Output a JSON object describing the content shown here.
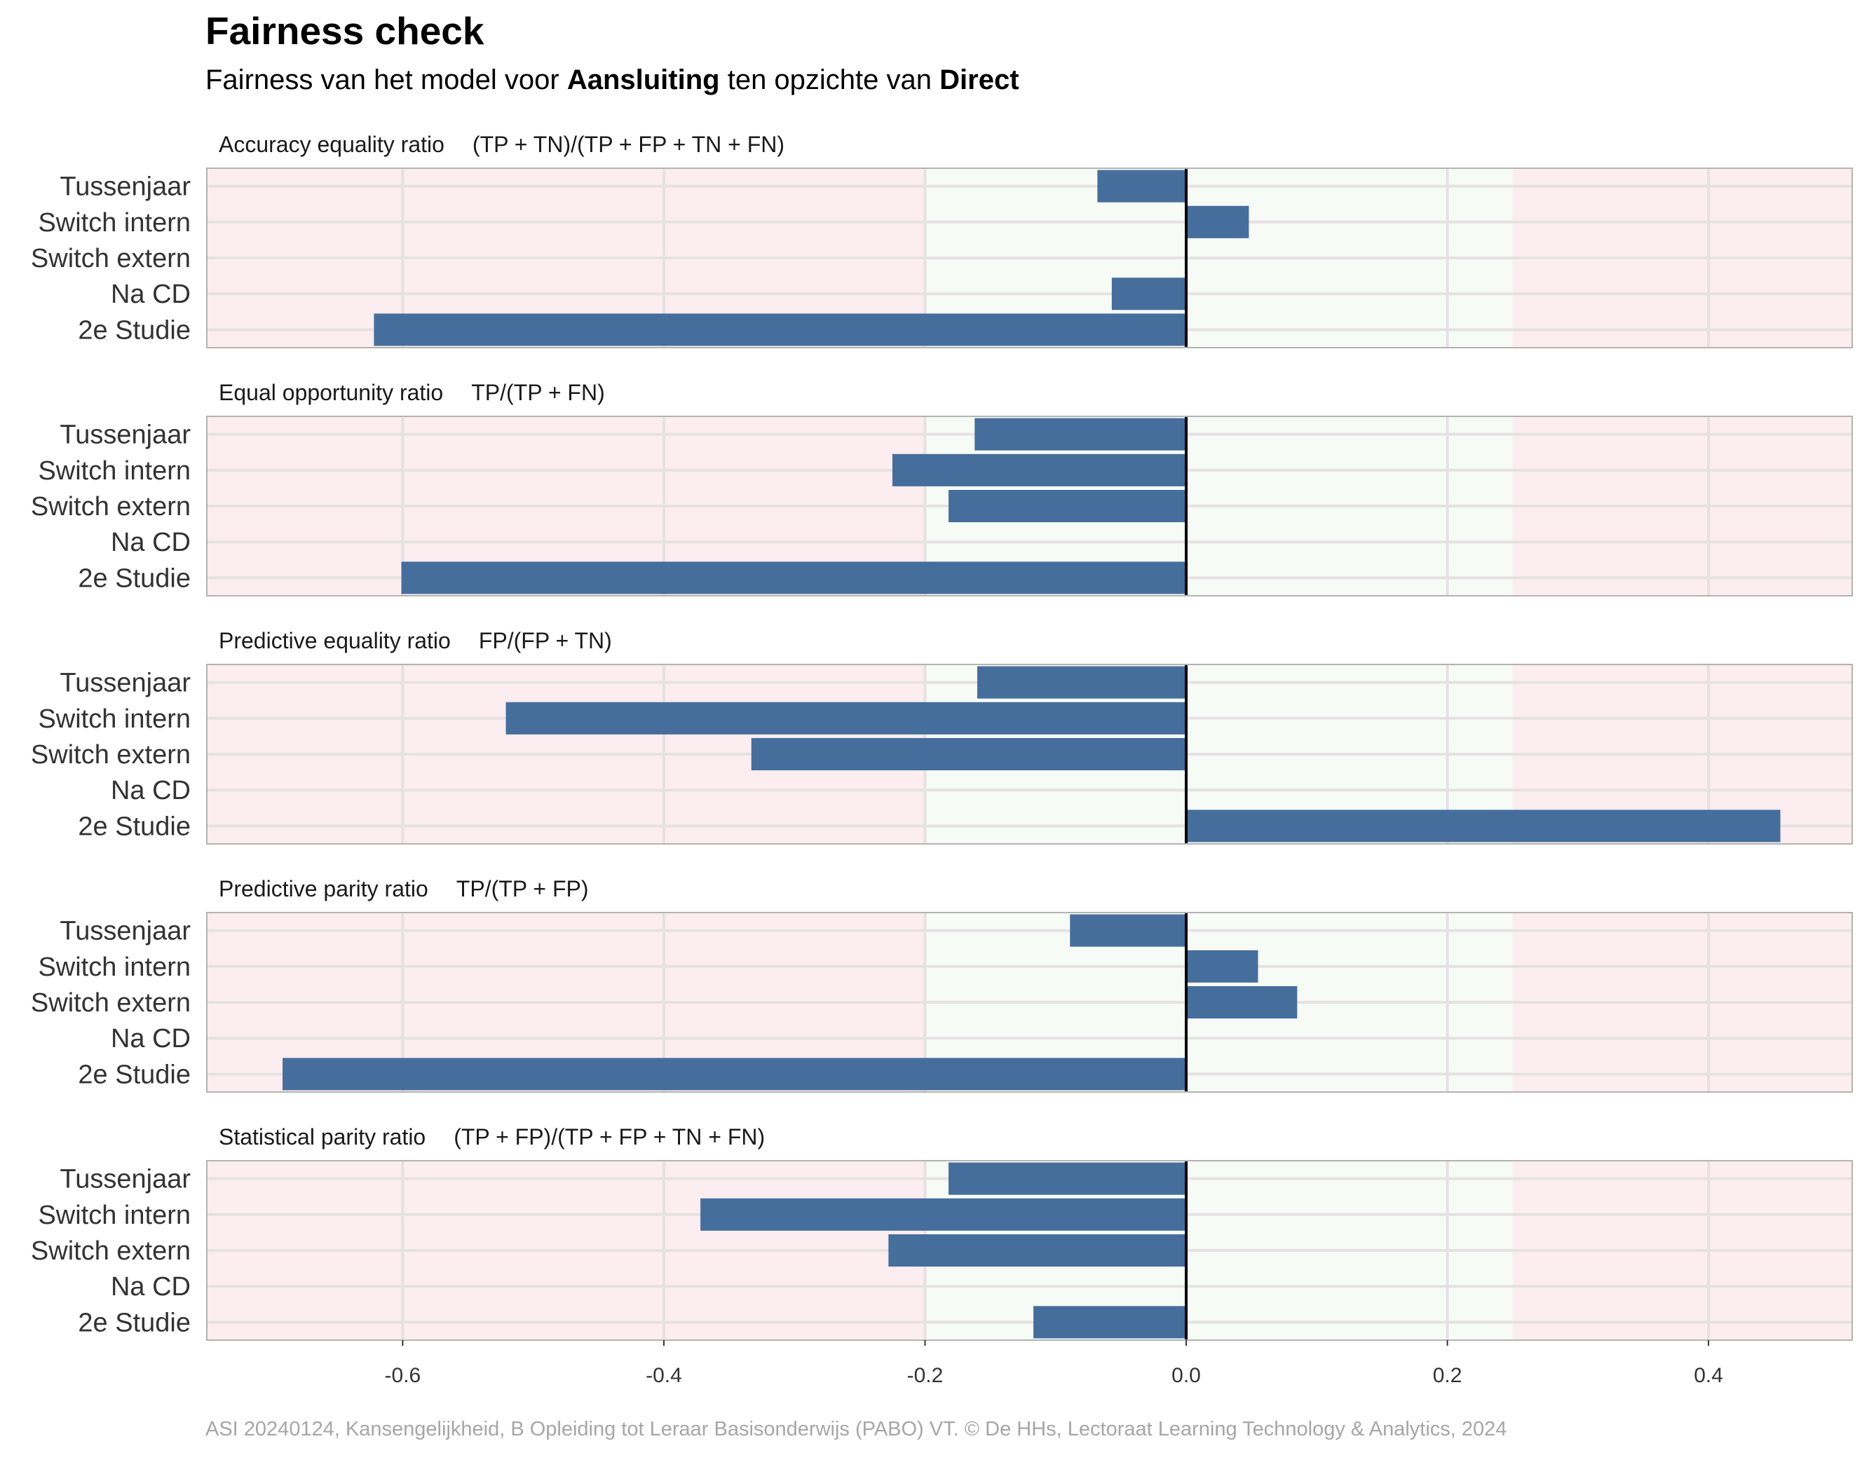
{
  "title": "Fairness check",
  "subtitle": {
    "prefix": "Fairness van het model voor ",
    "model": "Aansluiting",
    "middle": " ten opzichte van ",
    "reference": "Direct"
  },
  "caption": "ASI 20240124, Kansengelijkheid, B Opleiding tot Leraar Basisonderwijs (PABO) VT. © De HHs, Lectoraat Learning Technology & Analytics, 2024",
  "colors": {
    "bar": "#466E9C",
    "fair_band": "#F7FBF6",
    "unfair_band": "#FCEDF0",
    "gridline": "#E6E1E3",
    "panel_border": "#B3B3B3",
    "zero_line": "#000000"
  },
  "chart_data": {
    "type": "bar",
    "orientation": "horizontal",
    "facets": "vertical",
    "categories": [
      "Tussenjaar",
      "Switch intern",
      "Switch extern",
      "Na CD",
      "2e Studie"
    ],
    "xlim": [
      -0.75,
      0.51
    ],
    "x_ticks": [
      -0.6,
      -0.4,
      -0.2,
      0.0,
      0.2,
      0.4
    ],
    "x_tick_labels": [
      "-0.6",
      "-0.4",
      "-0.2",
      "0.0",
      "0.2",
      "0.4"
    ],
    "fair_band": [
      -0.2,
      0.25
    ],
    "reference_line": 0,
    "grid": true,
    "legend": "none",
    "panels": [
      {
        "label": "Accuracy equality ratio",
        "formula": "(TP + TN)/(TP + FP + TN + FN)",
        "values": [
          -0.068,
          0.048,
          -0.001,
          -0.057,
          -0.622
        ]
      },
      {
        "label": "Equal opportunity ratio",
        "formula": "TP/(TP + FN)",
        "values": [
          -0.162,
          -0.225,
          -0.182,
          null,
          -0.601
        ]
      },
      {
        "label": "Predictive equality ratio",
        "formula": "FP/(FP + TN)",
        "values": [
          -0.16,
          -0.521,
          -0.333,
          null,
          0.455
        ]
      },
      {
        "label": "Predictive parity ratio",
        "formula": "TP/(TP + FP)",
        "values": [
          -0.089,
          0.055,
          0.085,
          null,
          -0.692
        ]
      },
      {
        "label": "Statistical parity ratio",
        "formula": "(TP + FP)/(TP + FP + TN + FN)",
        "values": [
          -0.182,
          -0.372,
          -0.228,
          null,
          -0.117
        ]
      }
    ]
  }
}
